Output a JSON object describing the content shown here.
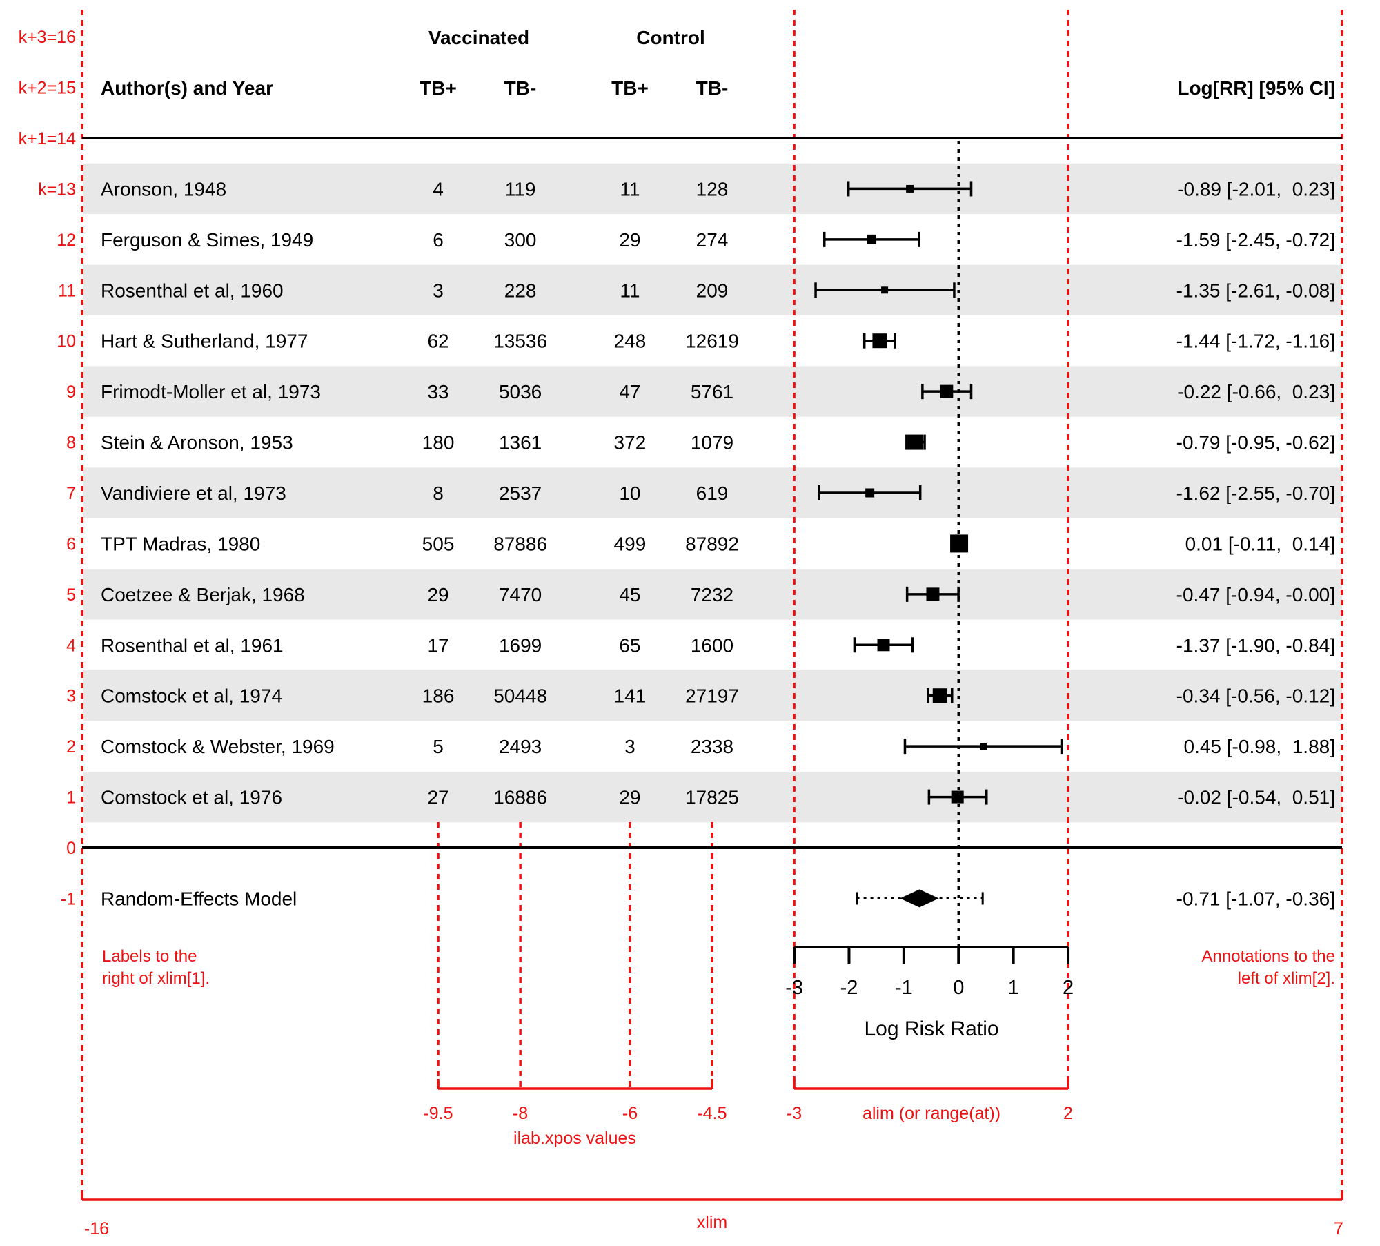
{
  "header": {
    "author_col": "Author(s) and Year",
    "group1": "Vaccinated",
    "group2": "Control",
    "sub_cols": [
      "TB+",
      "TB-",
      "TB+",
      "TB-"
    ],
    "annotation_col": "Log[RR] [95% CI]"
  },
  "chart_data": {
    "type": "forest",
    "x_axis": {
      "label": "Log Risk Ratio",
      "ticks": [
        {
          "v": -3,
          "label": "-3"
        },
        {
          "v": -2,
          "label": "-2"
        },
        {
          "v": -1,
          "label": "-1"
        },
        {
          "v": 0,
          "label": "0"
        },
        {
          "v": 1,
          "label": "1"
        },
        {
          "v": 2,
          "label": "2"
        }
      ],
      "alim": [
        -3,
        2
      ],
      "xlim": [
        -16,
        7
      ],
      "ilab_xpos": [
        -9.5,
        -8,
        -6,
        -4.5
      ],
      "zero_ref": 0
    },
    "studies": [
      {
        "row": 13,
        "shaded": true,
        "author": "Aronson, 1948",
        "vac_tb_pos": "4",
        "vac_tb_neg": "119",
        "ctl_tb_pos": "11",
        "ctl_tb_neg": "128",
        "est": -0.89,
        "lo": -2.01,
        "hi": 0.23,
        "size": 11,
        "annotation": "-0.89 [-2.01,  0.23]"
      },
      {
        "row": 12,
        "shaded": false,
        "author": "Ferguson & Simes, 1949",
        "vac_tb_pos": "6",
        "vac_tb_neg": "300",
        "ctl_tb_pos": "29",
        "ctl_tb_neg": "274",
        "est": -1.59,
        "lo": -2.45,
        "hi": -0.72,
        "size": 14,
        "annotation": "-1.59 [-2.45, -0.72]"
      },
      {
        "row": 11,
        "shaded": true,
        "author": "Rosenthal et al, 1960",
        "vac_tb_pos": "3",
        "vac_tb_neg": "228",
        "ctl_tb_pos": "11",
        "ctl_tb_neg": "209",
        "est": -1.35,
        "lo": -2.61,
        "hi": -0.08,
        "size": 10,
        "annotation": "-1.35 [-2.61, -0.08]"
      },
      {
        "row": 10,
        "shaded": false,
        "author": "Hart & Sutherland, 1977",
        "vac_tb_pos": "62",
        "vac_tb_neg": "13536",
        "ctl_tb_pos": "248",
        "ctl_tb_neg": "12619",
        "est": -1.44,
        "lo": -1.72,
        "hi": -1.16,
        "size": 21,
        "annotation": "-1.44 [-1.72, -1.16]"
      },
      {
        "row": 9,
        "shaded": true,
        "author": "Frimodt-Moller et al, 1973",
        "vac_tb_pos": "33",
        "vac_tb_neg": "5036",
        "ctl_tb_pos": "47",
        "ctl_tb_neg": "5761",
        "est": -0.22,
        "lo": -0.66,
        "hi": 0.23,
        "size": 19,
        "annotation": "-0.22 [-0.66,  0.23]"
      },
      {
        "row": 8,
        "shaded": false,
        "author": "Stein & Aronson, 1953",
        "vac_tb_pos": "180",
        "vac_tb_neg": "1361",
        "ctl_tb_pos": "372",
        "ctl_tb_neg": "1079",
        "est": -0.79,
        "lo": -0.95,
        "hi": -0.62,
        "size": 22,
        "annotation": "-0.79 [-0.95, -0.62]"
      },
      {
        "row": 7,
        "shaded": true,
        "author": "Vandiviere et al, 1973",
        "vac_tb_pos": "8",
        "vac_tb_neg": "2537",
        "ctl_tb_pos": "10",
        "ctl_tb_neg": "619",
        "est": -1.62,
        "lo": -2.55,
        "hi": -0.7,
        "size": 13,
        "annotation": "-1.62 [-2.55, -0.70]"
      },
      {
        "row": 6,
        "shaded": false,
        "author": "TPT Madras, 1980",
        "vac_tb_pos": "505",
        "vac_tb_neg": "87886",
        "ctl_tb_pos": "499",
        "ctl_tb_neg": "87892",
        "est": 0.01,
        "lo": -0.11,
        "hi": 0.14,
        "size": 26,
        "annotation": "0.01 [-0.11,  0.14]"
      },
      {
        "row": 5,
        "shaded": true,
        "author": "Coetzee & Berjak, 1968",
        "vac_tb_pos": "29",
        "vac_tb_neg": "7470",
        "ctl_tb_pos": "45",
        "ctl_tb_neg": "7232",
        "est": -0.47,
        "lo": -0.94,
        "hi": -0.002,
        "size": 19,
        "annotation": "-0.47 [-0.94, -0.00]"
      },
      {
        "row": 4,
        "shaded": false,
        "author": "Rosenthal et al, 1961",
        "vac_tb_pos": "17",
        "vac_tb_neg": "1699",
        "ctl_tb_pos": "65",
        "ctl_tb_neg": "1600",
        "est": -1.37,
        "lo": -1.9,
        "hi": -0.84,
        "size": 18,
        "annotation": "-1.37 [-1.90, -0.84]"
      },
      {
        "row": 3,
        "shaded": true,
        "author": "Comstock et al, 1974",
        "vac_tb_pos": "186",
        "vac_tb_neg": "50448",
        "ctl_tb_pos": "141",
        "ctl_tb_neg": "27197",
        "est": -0.34,
        "lo": -0.56,
        "hi": -0.12,
        "size": 21,
        "annotation": "-0.34 [-0.56, -0.12]"
      },
      {
        "row": 2,
        "shaded": false,
        "author": "Comstock & Webster, 1969",
        "vac_tb_pos": "5",
        "vac_tb_neg": "2493",
        "ctl_tb_pos": "3",
        "ctl_tb_neg": "2338",
        "est": 0.45,
        "lo": -0.98,
        "hi": 1.88,
        "size": 10,
        "annotation": "0.45 [-0.98,  1.88]"
      },
      {
        "row": 1,
        "shaded": true,
        "author": "Comstock et al, 1976",
        "vac_tb_pos": "27",
        "vac_tb_neg": "16886",
        "ctl_tb_pos": "29",
        "ctl_tb_neg": "17825",
        "est": -0.02,
        "lo": -0.54,
        "hi": 0.51,
        "size": 18,
        "annotation": "-0.02 [-0.54,  0.51]"
      }
    ],
    "model": {
      "row": -1,
      "label": "Random-Effects Model",
      "est": -0.71,
      "lo": -1.07,
      "hi": -0.36,
      "pi_lo": -1.86,
      "pi_hi": 0.44,
      "annotation": "-0.71 [-1.07, -0.36]"
    }
  },
  "red_guides": {
    "k_labels": [
      {
        "row": 16,
        "text": "k+3=16"
      },
      {
        "row": 15,
        "text": "k+2=15"
      },
      {
        "row": 14,
        "text": "k+1=14"
      },
      {
        "row": 13,
        "text": "k=13"
      },
      {
        "row": 12,
        "text": "12"
      },
      {
        "row": 11,
        "text": "11"
      },
      {
        "row": 10,
        "text": "10"
      },
      {
        "row": 9,
        "text": "9"
      },
      {
        "row": 8,
        "text": "8"
      },
      {
        "row": 7,
        "text": "7"
      },
      {
        "row": 6,
        "text": "6"
      },
      {
        "row": 5,
        "text": "5"
      },
      {
        "row": 4,
        "text": "4"
      },
      {
        "row": 3,
        "text": "3"
      },
      {
        "row": 2,
        "text": "2"
      },
      {
        "row": 1,
        "text": "1"
      },
      {
        "row": 0,
        "text": "0"
      },
      {
        "row": -1,
        "text": "-1"
      }
    ],
    "caption_left": [
      "Labels to the",
      "right of xlim[1]."
    ],
    "caption_right": [
      "Annotations to the",
      "left of xlim[2]."
    ],
    "ilab_tick_labels": [
      "-9.5",
      "-8",
      "-6",
      "-4.5"
    ],
    "ilab_caption": "ilab.xpos values",
    "alim_left_label": "-3",
    "alim_caption": "alim (or range(at))",
    "alim_right_label": "2",
    "xlim_caption": "xlim",
    "xlim_left_label": "-16",
    "xlim_right_label": "7",
    "colors": {
      "red": "#ee1111",
      "band": "#e8e8e8",
      "black": "#000000"
    }
  }
}
